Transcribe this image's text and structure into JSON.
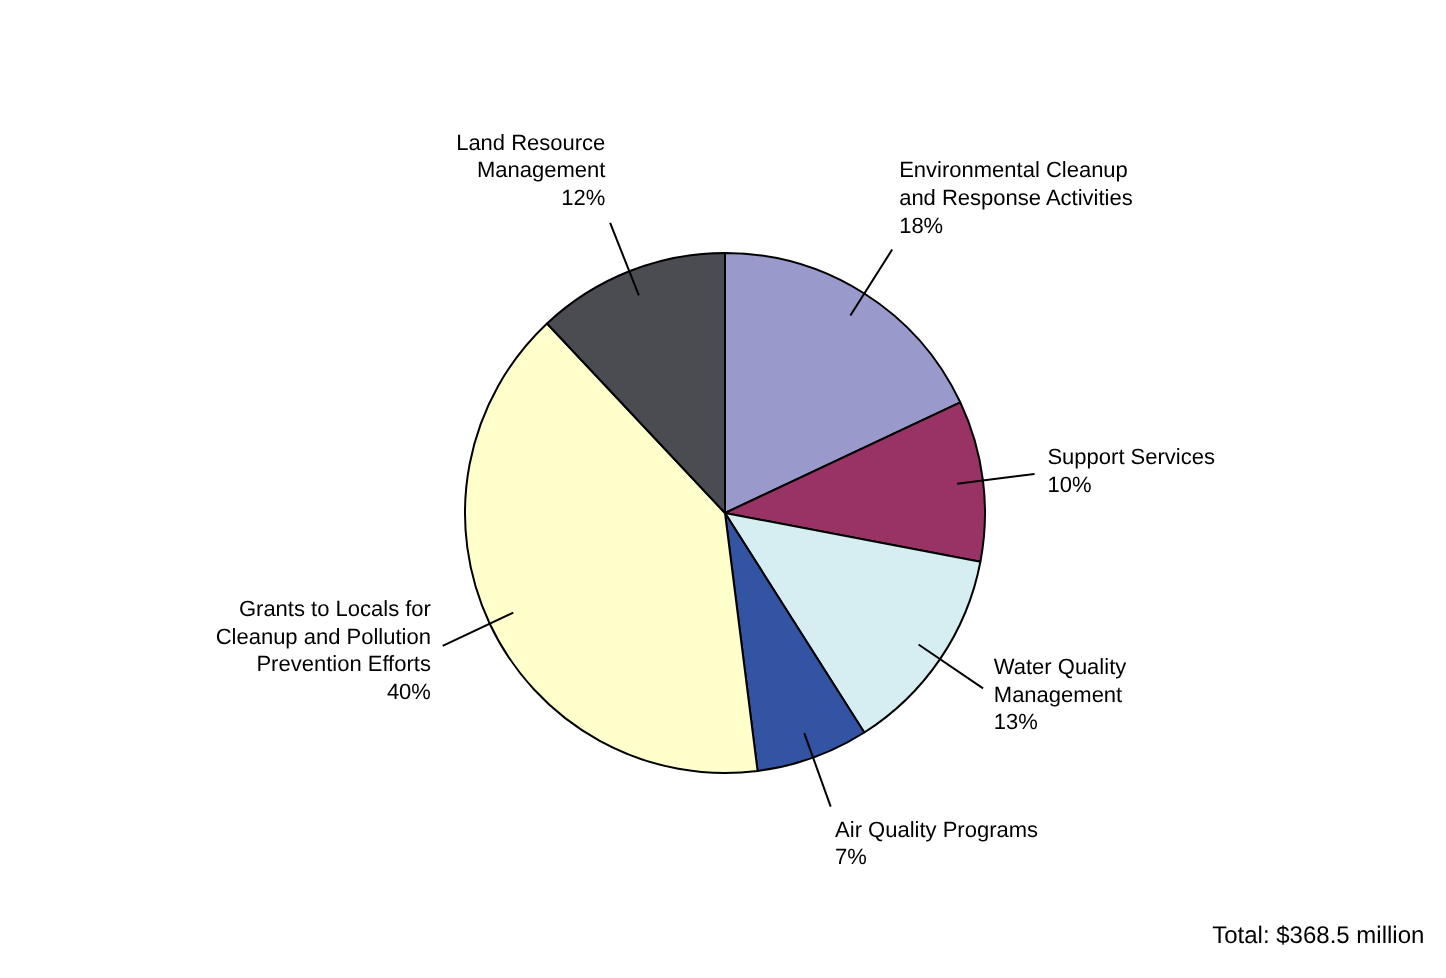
{
  "chart_data": {
    "type": "pie",
    "categories": [
      "Environmental Cleanup and Response Activities",
      "Support Services",
      "Water Quality Management",
      "Air Quality Programs",
      "Grants to Locals for Cleanup and Pollution Prevention Efforts",
      "Land Resource Management"
    ],
    "values": [
      18,
      10,
      13,
      7,
      40,
      12
    ],
    "value_labels": [
      "18%",
      "10%",
      "13%",
      "7%",
      "40%",
      "12%"
    ],
    "colors": [
      "#9999cc",
      "#993366",
      "#d6eef2",
      "#3354a3",
      "#ffffcc",
      "#4b4b52"
    ],
    "annotations": [
      "Total:  $368.5 million"
    ]
  }
}
